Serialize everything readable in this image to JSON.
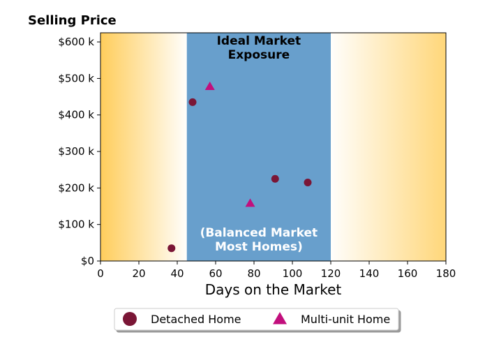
{
  "chart_data": {
    "type": "scatter",
    "title": "",
    "ylabel": "Selling Price",
    "xlabel": "Days on the Market",
    "xlim": [
      0,
      180
    ],
    "ylim": [
      0,
      625000
    ],
    "x_ticks": [
      0,
      20,
      40,
      60,
      80,
      100,
      120,
      140,
      160,
      180
    ],
    "y_ticks": [
      0,
      100000,
      200000,
      300000,
      400000,
      500000,
      600000
    ],
    "y_tick_labels": [
      "$0",
      "$100 k",
      "$200 k",
      "$300 k",
      "$400 k",
      "$500 k",
      "$600 k"
    ],
    "grid": false,
    "ideal_range": {
      "x_start": 45,
      "x_end": 120,
      "color": "#689fcc",
      "label_top": [
        "Ideal Market",
        "Exposure"
      ],
      "label_bottom": [
        "(Balanced Market",
        "Most Homes)"
      ]
    },
    "gradient_color": "#ffc94d",
    "legend_position": "bottom-center",
    "series": [
      {
        "name": "Detached Home",
        "marker": "circle",
        "color": "#7a1636",
        "points": [
          {
            "x": 37,
            "y": 35000
          },
          {
            "x": 48,
            "y": 435000
          },
          {
            "x": 91,
            "y": 225000
          },
          {
            "x": 108,
            "y": 215000
          }
        ]
      },
      {
        "name": "Multi-unit Home",
        "marker": "triangle",
        "color": "#c20f7d",
        "points": [
          {
            "x": 57,
            "y": 478000
          },
          {
            "x": 78,
            "y": 158000
          }
        ]
      }
    ]
  }
}
